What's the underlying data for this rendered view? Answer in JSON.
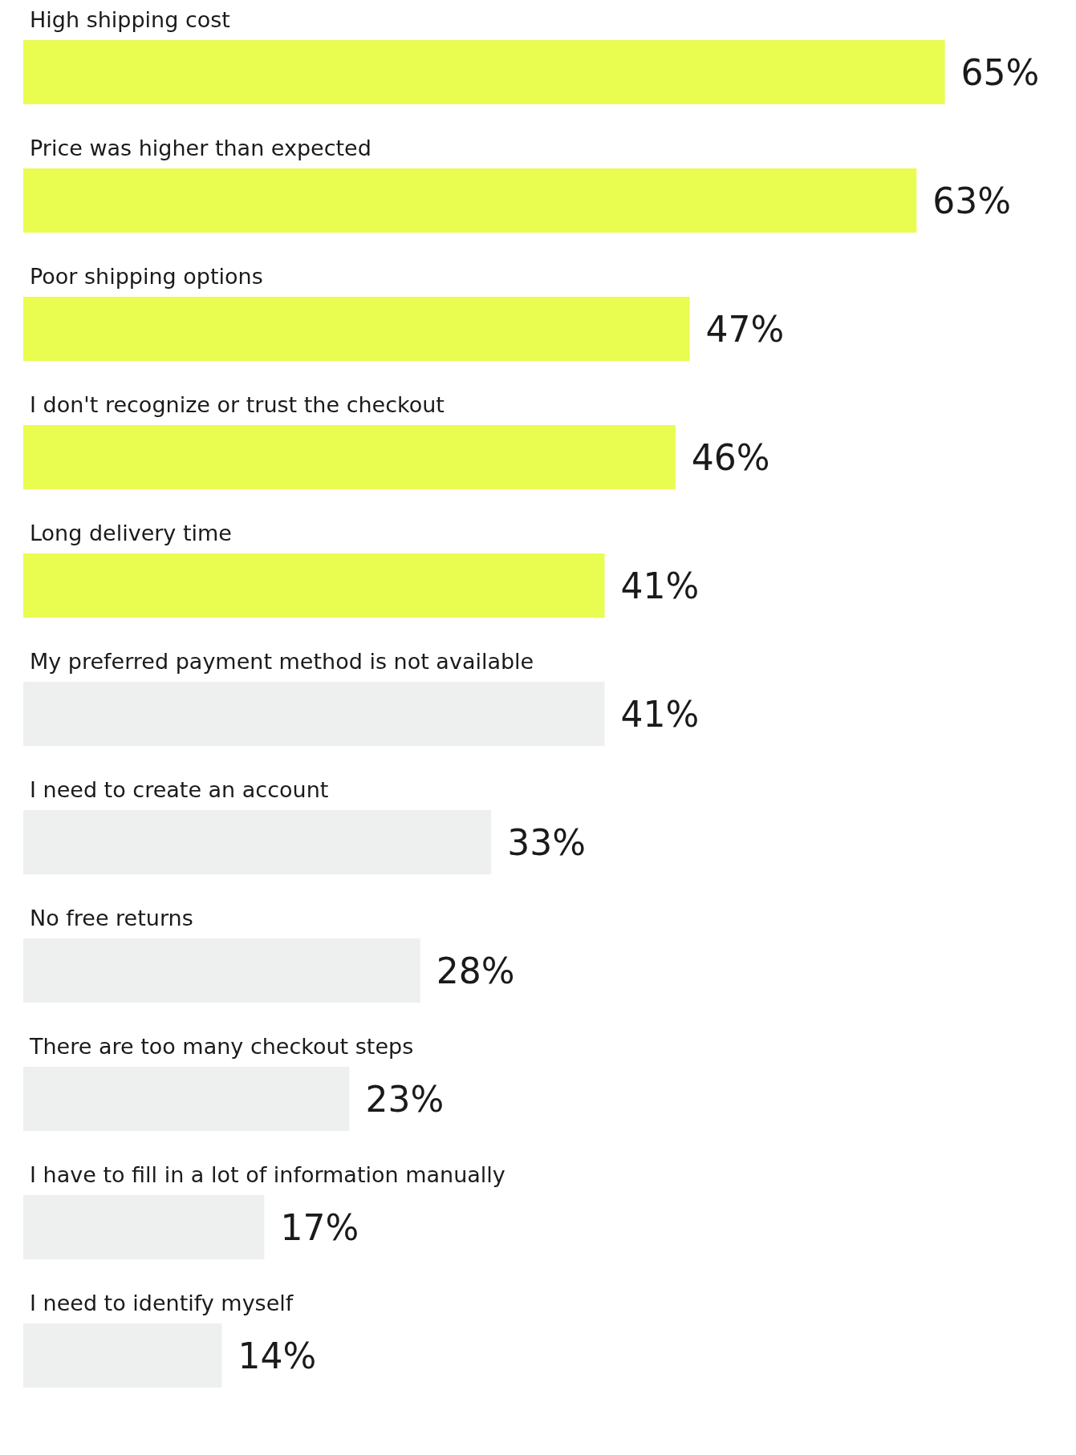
{
  "chart_data": {
    "type": "bar",
    "orientation": "horizontal",
    "categories": [
      "High shipping cost",
      "Price was higher than expected",
      "Poor shipping options",
      "I don't recognize or trust the checkout",
      "Long delivery time",
      "My preferred payment method is not available",
      "I need to create an account",
      "No free returns",
      "There are too many checkout steps",
      "I have to fill in a lot of information manually",
      "I need to identify myself"
    ],
    "values": [
      65,
      63,
      47,
      46,
      41,
      41,
      33,
      28,
      23,
      17,
      14
    ],
    "value_labels": [
      "65%",
      "63%",
      "47%",
      "46%",
      "41%",
      "41%",
      "33%",
      "28%",
      "23%",
      "17%",
      "14%"
    ],
    "colors": [
      "#e9fc50",
      "#e9fc50",
      "#e9fc50",
      "#e9fc50",
      "#e9fc50",
      "#edf0ee",
      "#edf0ee",
      "#edf0ee",
      "#edf0ee",
      "#edf0ee",
      "#edf0ee"
    ]
  }
}
